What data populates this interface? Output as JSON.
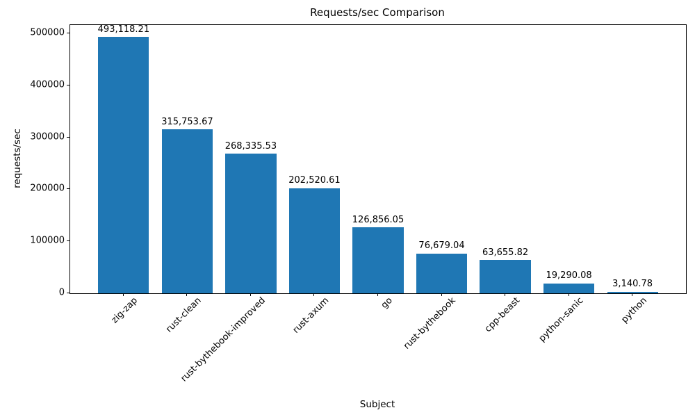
{
  "chart_data": {
    "type": "bar",
    "title": "Requests/sec Comparison",
    "xlabel": "Subject",
    "ylabel": "requests/sec",
    "categories": [
      "zig-zap",
      "rust-clean",
      "rust-bythebook-improved",
      "rust-axum",
      "go",
      "rust-bythebook",
      "cpp-beast",
      "python-sanic",
      "python"
    ],
    "values": [
      493118.21,
      315753.67,
      268335.53,
      202520.61,
      126856.05,
      76679.04,
      63655.82,
      19290.08,
      3140.78
    ],
    "value_labels": [
      "493,118.21",
      "315,753.67",
      "268,335.53",
      "202,520.61",
      "126,856.05",
      "76,679.04",
      "63,655.82",
      "19,290.08",
      "3,140.78"
    ],
    "yticks": [
      0,
      100000,
      200000,
      300000,
      400000,
      500000
    ],
    "ytick_labels": [
      "0",
      "100000",
      "200000",
      "300000",
      "400000",
      "500000"
    ],
    "ylim": [
      0,
      516000
    ],
    "xlim": [
      -0.84,
      8.84
    ],
    "bar_width_units": 0.8,
    "bar_color": "#1f77b4",
    "grid": false,
    "legend": null,
    "x_tick_rotation": 45
  }
}
